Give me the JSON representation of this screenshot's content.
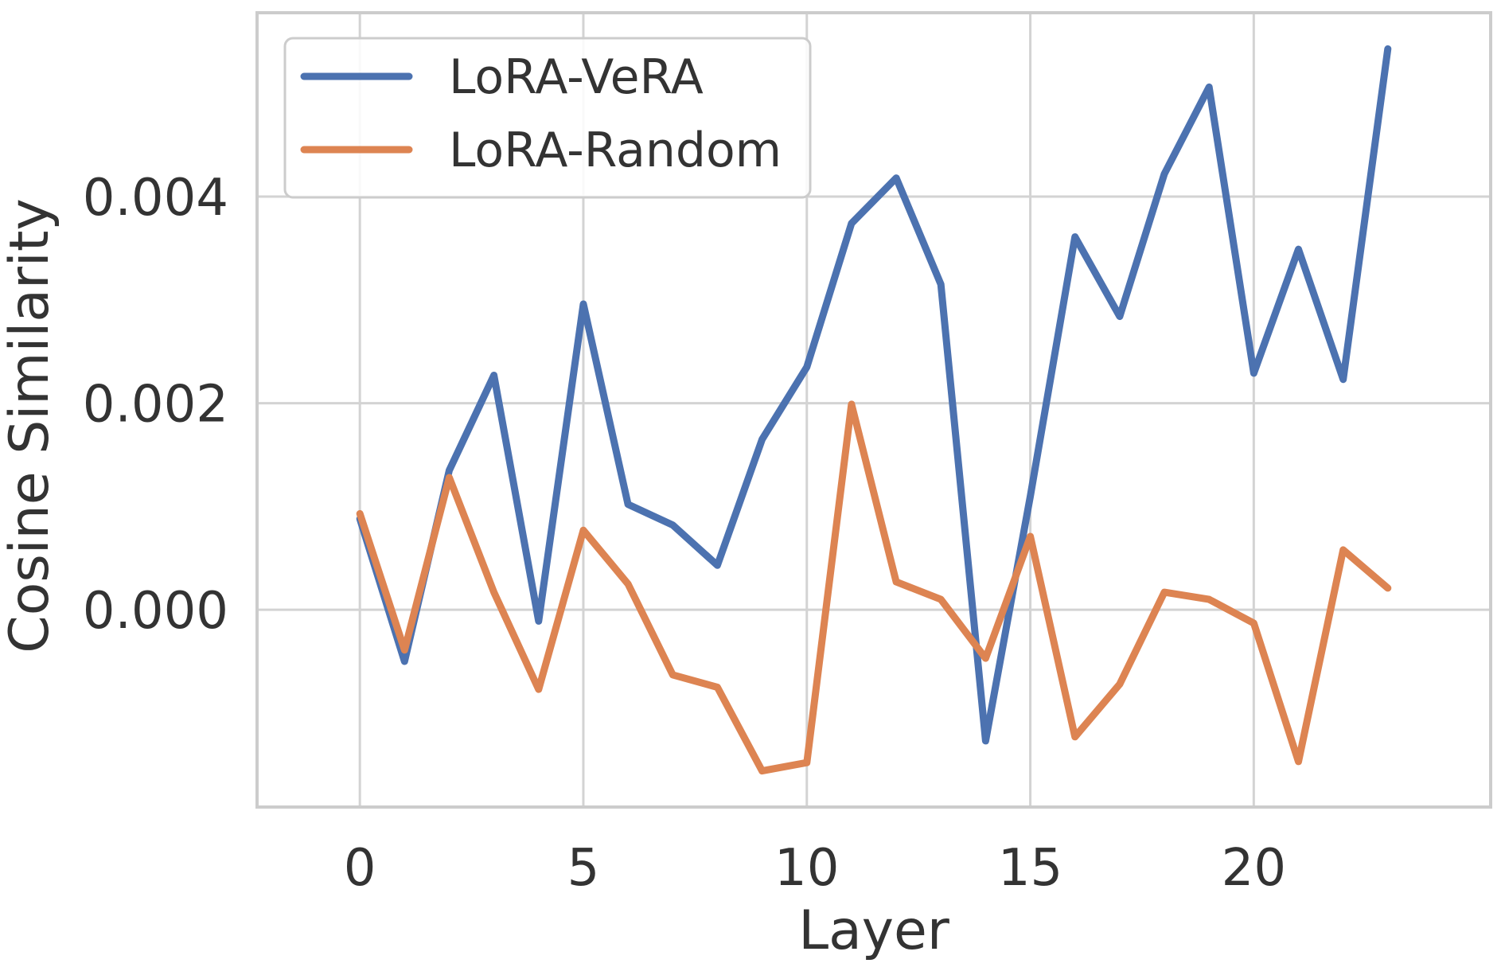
{
  "chart_data": {
    "type": "line",
    "title": "",
    "xlabel": "Layer",
    "ylabel": "Cosine Similarity",
    "xlim": [
      -2.3,
      25.3
    ],
    "ylim": [
      -0.00191,
      0.00578
    ],
    "xticks": [
      0,
      5,
      10,
      15,
      20
    ],
    "xtick_labels": [
      "0",
      "5",
      "10",
      "15",
      "20"
    ],
    "yticks": [
      0.0,
      0.002,
      0.004
    ],
    "ytick_labels": [
      "0.000",
      "0.002",
      "0.004"
    ],
    "grid": true,
    "legend": "top-left",
    "x": [
      0,
      1,
      2,
      3,
      4,
      5,
      6,
      7,
      8,
      9,
      10,
      11,
      12,
      13,
      14,
      15,
      16,
      17,
      18,
      19,
      20,
      21,
      22,
      23
    ],
    "series": [
      {
        "name": "LoRA-VeRA",
        "color": "#4c72b0",
        "values": [
          0.00088,
          -0.0005,
          0.00135,
          0.00227,
          -0.00011,
          0.00296,
          0.00102,
          0.00082,
          0.00043,
          0.00165,
          0.00235,
          0.00374,
          0.00418,
          0.00315,
          -0.00127,
          0.0011,
          0.00361,
          0.00284,
          0.00422,
          0.00506,
          0.00229,
          0.00349,
          0.00223,
          0.00543
        ]
      },
      {
        "name": "LoRA-Random",
        "color": "#dd8452",
        "values": [
          0.00093,
          -0.00039,
          0.00128,
          0.00017,
          -0.00077,
          0.00077,
          0.00025,
          -0.00063,
          -0.00075,
          -0.00156,
          -0.00148,
          0.00199,
          0.00027,
          0.0001,
          -0.00047,
          0.00071,
          -0.00123,
          -0.00072,
          0.00017,
          0.0001,
          -0.00013,
          -0.00147,
          0.00058,
          0.00021
        ]
      }
    ]
  }
}
